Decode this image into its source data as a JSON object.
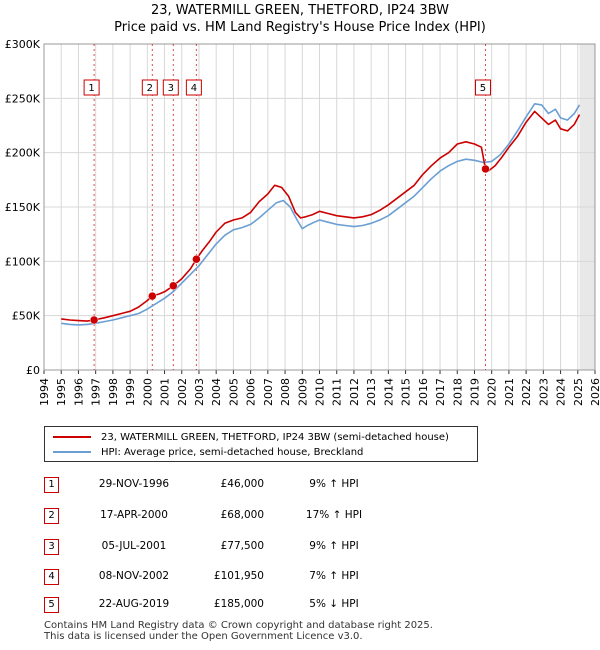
{
  "chart_data": {
    "type": "line",
    "title": "23, WATERMILL GREEN, THETFORD, IP24 3BW",
    "subtitle": "Price paid vs. HM Land Registry's House Price Index (HPI)",
    "xlim": [
      1994,
      2026
    ],
    "ylim": [
      0,
      300000
    ],
    "x_ticks": [
      "1994",
      "1995",
      "1996",
      "1997",
      "1998",
      "1999",
      "2000",
      "2001",
      "2002",
      "2003",
      "2004",
      "2005",
      "2006",
      "2007",
      "2008",
      "2009",
      "2010",
      "2011",
      "2012",
      "2013",
      "2014",
      "2015",
      "2016",
      "2017",
      "2018",
      "2019",
      "2020",
      "2021",
      "2022",
      "2023",
      "2024",
      "2025",
      "2026"
    ],
    "y_ticks": [
      {
        "value": 0,
        "label": "£0"
      },
      {
        "value": 50000,
        "label": "£50K"
      },
      {
        "value": 100000,
        "label": "£100K"
      },
      {
        "value": 150000,
        "label": "£150K"
      },
      {
        "value": 200000,
        "label": "£200K"
      },
      {
        "value": 250000,
        "label": "£250K"
      },
      {
        "value": 300000,
        "label": "£300K"
      }
    ],
    "grid": true,
    "series": [
      {
        "name": "23, WATERMILL GREEN, THETFORD, IP24 3BW (semi-detached house)",
        "color": "#cc0000",
        "x": [
          1995.0,
          1995.5,
          1996.0,
          1996.5,
          1996.91,
          1997.5,
          1998.0,
          1998.5,
          1999.0,
          1999.5,
          2000.0,
          2000.29,
          2000.7,
          2001.0,
          2001.51,
          2002.0,
          2002.5,
          2002.85,
          2003.2,
          2003.6,
          2004.0,
          2004.5,
          2005.0,
          2005.5,
          2006.0,
          2006.5,
          2007.0,
          2007.4,
          2007.8,
          2008.2,
          2008.6,
          2008.9,
          2009.2,
          2009.6,
          2010.0,
          2010.5,
          2011.0,
          2011.5,
          2012.0,
          2012.5,
          2013.0,
          2013.5,
          2014.0,
          2014.5,
          2015.0,
          2015.5,
          2016.0,
          2016.5,
          2017.0,
          2017.5,
          2018.0,
          2018.5,
          2019.0,
          2019.4,
          2019.64,
          2019.8,
          2020.2,
          2020.6,
          2021.0,
          2021.5,
          2022.0,
          2022.5,
          2022.9,
          2023.3,
          2023.7,
          2024.0,
          2024.4,
          2024.8,
          2025.1
        ],
        "y": [
          47000,
          46000,
          45500,
          45000,
          46000,
          48000,
          50000,
          52000,
          54000,
          58000,
          64000,
          68000,
          70000,
          72000,
          77500,
          84000,
          93000,
          101950,
          110000,
          118000,
          127000,
          135000,
          138000,
          140000,
          145000,
          155000,
          162000,
          170000,
          168000,
          160000,
          145000,
          140000,
          141000,
          143000,
          146000,
          144000,
          142000,
          141000,
          140000,
          141000,
          143000,
          147000,
          152000,
          158000,
          164000,
          170000,
          180000,
          188000,
          195000,
          200000,
          208000,
          210000,
          208000,
          205000,
          185000,
          183000,
          188000,
          196000,
          205000,
          215000,
          228000,
          238000,
          232000,
          226000,
          230000,
          222000,
          220000,
          226000,
          235000
        ]
      },
      {
        "name": "HPI: Average price, semi-detached house, Breckland",
        "color": "#6b9fd4",
        "x": [
          1995.0,
          1995.5,
          1996.0,
          1996.5,
          1997.0,
          1997.5,
          1998.0,
          1998.5,
          1999.0,
          1999.5,
          2000.0,
          2000.5,
          2001.0,
          2001.5,
          2002.0,
          2002.5,
          2003.0,
          2003.5,
          2004.0,
          2004.5,
          2005.0,
          2005.5,
          2006.0,
          2006.5,
          2007.0,
          2007.5,
          2007.9,
          2008.3,
          2008.7,
          2009.0,
          2009.3,
          2009.7,
          2010.0,
          2010.5,
          2011.0,
          2011.5,
          2012.0,
          2012.5,
          2013.0,
          2013.5,
          2014.0,
          2014.5,
          2015.0,
          2015.5,
          2016.0,
          2016.5,
          2017.0,
          2017.5,
          2018.0,
          2018.5,
          2019.0,
          2019.5,
          2020.0,
          2020.5,
          2021.0,
          2021.5,
          2022.0,
          2022.5,
          2022.9,
          2023.3,
          2023.7,
          2024.0,
          2024.4,
          2024.8,
          2025.1
        ],
        "y": [
          43000,
          42000,
          41500,
          42000,
          43000,
          44500,
          46000,
          48000,
          50000,
          52000,
          56000,
          61000,
          66000,
          72000,
          80000,
          88000,
          96000,
          106000,
          116000,
          124000,
          129000,
          131000,
          134000,
          140000,
          147000,
          154000,
          156000,
          150000,
          138000,
          130000,
          133000,
          136000,
          138000,
          136000,
          134000,
          133000,
          132000,
          133000,
          135000,
          138000,
          142000,
          148000,
          154000,
          160000,
          168000,
          176000,
          183000,
          188000,
          192000,
          194000,
          193000,
          191000,
          192000,
          198000,
          208000,
          220000,
          233000,
          245000,
          244000,
          236000,
          240000,
          232000,
          230000,
          236000,
          244000
        ]
      }
    ],
    "transactions": [
      {
        "num": "1",
        "x": 1996.91,
        "y": 46000
      },
      {
        "num": "2",
        "x": 2000.29,
        "y": 68000
      },
      {
        "num": "3",
        "x": 2001.51,
        "y": 77500
      },
      {
        "num": "4",
        "x": 2002.85,
        "y": 101950
      },
      {
        "num": "5",
        "x": 2019.64,
        "y": 185000
      }
    ]
  },
  "legend": {
    "property_label": "23, WATERMILL GREEN, THETFORD, IP24 3BW (semi-detached house)",
    "hpi_label": "HPI: Average price, semi-detached house, Breckland"
  },
  "table": {
    "rows": [
      {
        "num": "1",
        "date": "29-NOV-1996",
        "price": "£46,000",
        "hpi": "9% ↑ HPI"
      },
      {
        "num": "2",
        "date": "17-APR-2000",
        "price": "£68,000",
        "hpi": "17% ↑ HPI"
      },
      {
        "num": "3",
        "date": "05-JUL-2001",
        "price": "£77,500",
        "hpi": "9% ↑ HPI"
      },
      {
        "num": "4",
        "date": "08-NOV-2002",
        "price": "£101,950",
        "hpi": "7% ↑ HPI"
      },
      {
        "num": "5",
        "date": "22-AUG-2019",
        "price": "£185,000",
        "hpi": "5% ↓ HPI"
      }
    ]
  },
  "footer": {
    "line1": "Contains HM Land Registry data © Crown copyright and database right 2025.",
    "line2": "This data is licensed under the Open Government Licence v3.0."
  }
}
